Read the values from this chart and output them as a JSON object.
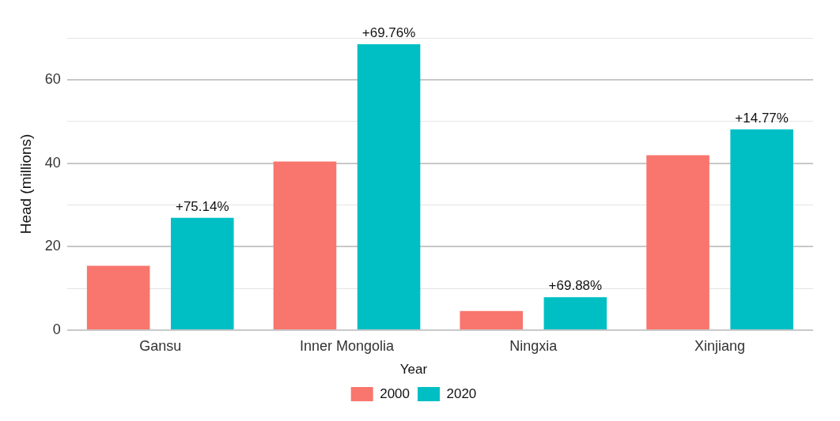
{
  "chart_data": {
    "type": "bar",
    "ylabel": "Head (millions)",
    "legend_title": "Year",
    "categories": [
      "Gansu",
      "Inner Mongolia",
      "Ningxia",
      "Xinjiang"
    ],
    "series": [
      {
        "name": "2000",
        "color": "#f8766d",
        "values": [
          15.4,
          40.4,
          4.6,
          41.9
        ]
      },
      {
        "name": "2020",
        "color": "#00bfc4",
        "values": [
          26.9,
          68.5,
          7.9,
          48.1
        ]
      }
    ],
    "ylim": [
      0,
      70
    ],
    "yticks": [
      0,
      {
        "value": 10,
        "label": null
      },
      20,
      {
        "value": 30,
        "label": null
      },
      40,
      {
        "value": 50,
        "label": null
      },
      60,
      {
        "value": 70,
        "label": null
      }
    ],
    "grid": "y",
    "legend": "bottom",
    "annotations": [
      "+75.14%",
      "+69.76%",
      "+69.88%",
      "+14.77%"
    ]
  }
}
